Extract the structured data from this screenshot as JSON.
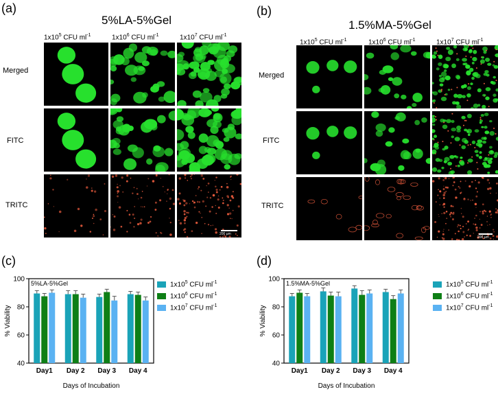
{
  "panels": {
    "a": {
      "letter": "(a)",
      "title": "5%LA-5%Gel"
    },
    "b": {
      "letter": "(b)",
      "title": "1.5%MA-5%Gel"
    },
    "c": {
      "letter": "(c)"
    },
    "d": {
      "letter": "(d)"
    }
  },
  "columns": {
    "c1": {
      "base": "1x10",
      "exp": "5",
      "unit": " CFU ml",
      "uexp": "-1"
    },
    "c2": {
      "base": "1x10",
      "exp": "6",
      "unit": " CFU ml",
      "uexp": "-1"
    },
    "c3": {
      "base": "1x10",
      "exp": "7",
      "unit": " CFU ml",
      "uexp": "-1"
    }
  },
  "rows": {
    "merged": "Merged",
    "fitc": "FITC",
    "tritc": "TRITC"
  },
  "scalebars": {
    "a": "200 µm",
    "b": "200 µm"
  },
  "colors": {
    "s1": "#1aa3b8",
    "s2": "#0e7f16",
    "s3": "#5ab2f2",
    "fitc": "#27e02d",
    "tritc": "#e65a3c"
  },
  "chart_data": [
    {
      "type": "bar",
      "title": "5%LA-5%Gel",
      "xlabel": "Days of Incubation",
      "ylabel": "% Viability",
      "ylim": [
        40,
        100
      ],
      "yticks": [
        "40",
        "60",
        "80",
        "100"
      ],
      "categories": [
        "Day1",
        "Day 2",
        "Day 3",
        "Day 4"
      ],
      "legend_position": "right",
      "series": [
        {
          "name": "1x10^5 CFU ml^-1",
          "values": [
            89.5,
            89,
            87,
            89
          ],
          "errors": [
            2,
            2.5,
            2,
            2
          ]
        },
        {
          "name": "1x10^6 CFU ml^-1",
          "values": [
            87.5,
            89,
            90.5,
            88.5
          ],
          "errors": [
            2,
            2.5,
            2,
            2
          ]
        },
        {
          "name": "1x10^7 CFU ml^-1",
          "values": [
            90,
            86.5,
            84.5,
            84.5
          ],
          "errors": [
            2,
            2.5,
            3,
            2.5
          ]
        }
      ]
    },
    {
      "type": "bar",
      "title": "1.5%MA-5%Gel",
      "xlabel": "Days of Incubation",
      "ylabel": "% Viability",
      "ylim": [
        40,
        100
      ],
      "yticks": [
        "40",
        "60",
        "80",
        "100"
      ],
      "categories": [
        "Day1",
        "Day 2",
        "Day 3",
        "Day 4"
      ],
      "legend_position": "right",
      "series": [
        {
          "name": "1x10^5 CFU ml^-1",
          "values": [
            87.5,
            91,
            93,
            90.5
          ],
          "errors": [
            2,
            2.5,
            2,
            2
          ]
        },
        {
          "name": "1x10^6 CFU ml^-1",
          "values": [
            90,
            88,
            88.5,
            85.5
          ],
          "errors": [
            2,
            2.5,
            3,
            2.5
          ]
        },
        {
          "name": "1x10^7 CFU ml^-1",
          "values": [
            87.5,
            87.5,
            89.5,
            89.5
          ],
          "errors": [
            2,
            3,
            2.5,
            2.5
          ]
        }
      ]
    }
  ]
}
